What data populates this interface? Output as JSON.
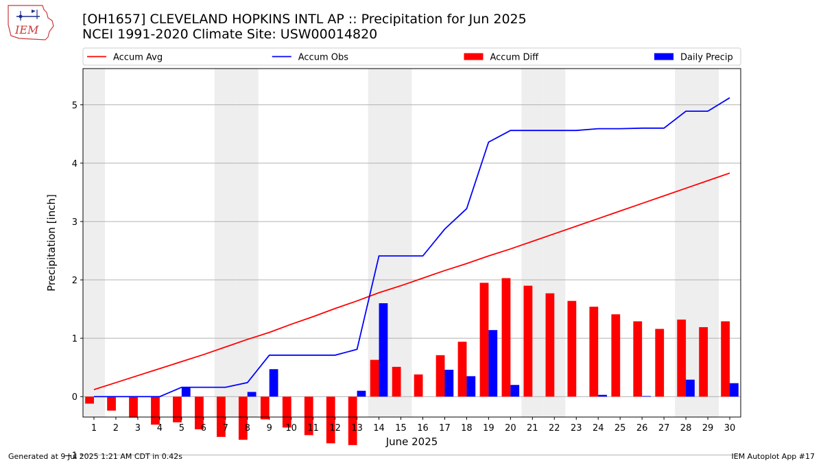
{
  "header": {
    "title": "[OH1657] CLEVELAND HOPKINS INTL AP :: Precipitation for Jun 2025",
    "subtitle": "NCEI 1991-2020 Climate Site: USW00014820",
    "logo_text": "IEM"
  },
  "footer": {
    "generated": "Generated at 9 Jul 2025 1:21 AM CDT in 0.42s",
    "app": "IEM Autoplot App #17"
  },
  "colors": {
    "accum_avg": "#ff0000",
    "accum_obs": "#0000ff",
    "accum_diff": "#ff0000",
    "daily_precip": "#0000ff",
    "weekend_shade": "#eeeeee",
    "grid": "#b0b0b0"
  },
  "chart_data": {
    "type": "bar",
    "xlabel": "June 2025",
    "ylabel": "Precipitation [inch]",
    "ylim": [
      -0.35,
      5.62
    ],
    "yticks": [
      -1,
      0,
      1,
      2,
      3,
      4,
      5
    ],
    "ytick_labels": [
      "−1",
      "0",
      "1",
      "2",
      "3",
      "4",
      "5"
    ],
    "grid": "y",
    "legend_position": "top",
    "weekend_days": [
      1,
      7,
      8,
      14,
      15,
      21,
      22,
      28,
      29
    ],
    "categories": [
      "1",
      "2",
      "3",
      "4",
      "5",
      "6",
      "7",
      "8",
      "9",
      "10",
      "11",
      "12",
      "13",
      "14",
      "15",
      "16",
      "17",
      "18",
      "19",
      "20",
      "21",
      "22",
      "23",
      "24",
      "25",
      "26",
      "27",
      "28",
      "29",
      "30"
    ],
    "series": [
      {
        "name": "Accum Avg",
        "kind": "line",
        "values": [
          0.12,
          0.24,
          0.36,
          0.48,
          0.6,
          0.72,
          0.85,
          0.98,
          1.1,
          1.24,
          1.37,
          1.51,
          1.64,
          1.78,
          1.9,
          2.03,
          2.16,
          2.28,
          2.41,
          2.53,
          2.66,
          2.79,
          2.92,
          3.05,
          3.18,
          3.31,
          3.44,
          3.57,
          3.7,
          3.83
        ]
      },
      {
        "name": "Accum Obs",
        "kind": "line",
        "values": [
          0.0,
          0.0,
          0.0,
          0.0,
          0.16,
          0.16,
          0.16,
          0.24,
          0.71,
          0.71,
          0.71,
          0.71,
          0.81,
          2.41,
          2.41,
          2.41,
          2.87,
          3.22,
          4.36,
          4.56,
          4.56,
          4.56,
          4.56,
          4.59,
          4.59,
          4.6,
          4.6,
          4.89,
          4.89,
          5.12
        ]
      },
      {
        "name": "Accum Diff",
        "kind": "bar",
        "values": [
          -0.12,
          -0.24,
          -0.36,
          -0.48,
          -0.44,
          -0.56,
          -0.69,
          -0.74,
          -0.39,
          -0.53,
          -0.66,
          -0.8,
          -0.83,
          0.63,
          0.51,
          0.38,
          0.71,
          0.94,
          1.95,
          2.03,
          1.9,
          1.77,
          1.64,
          1.54,
          1.41,
          1.29,
          1.16,
          1.32,
          1.19,
          1.29
        ]
      },
      {
        "name": "Daily Precip",
        "kind": "bar",
        "values": [
          0,
          0,
          0,
          0,
          0.16,
          0,
          0,
          0.08,
          0.47,
          0,
          0,
          0,
          0.1,
          1.6,
          0,
          0,
          0.46,
          0.35,
          1.14,
          0.2,
          0,
          0,
          0,
          0.03,
          0,
          0.01,
          0,
          0.29,
          0,
          0.23
        ]
      }
    ]
  }
}
